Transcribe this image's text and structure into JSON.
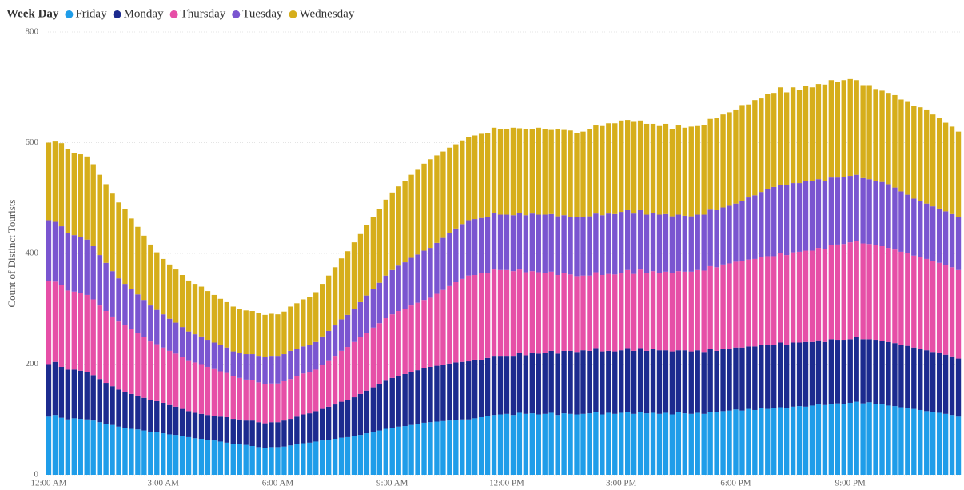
{
  "chart_data": {
    "type": "stacked_bar",
    "legend_title": "Week Day",
    "y_label": "Count of Distinct Tourists",
    "ylim": [
      0,
      800
    ],
    "yticks": [
      0,
      200,
      400,
      600,
      800
    ],
    "grid": true,
    "legend": "top-left",
    "categories": [
      "12:00 AM",
      null,
      null,
      null,
      null,
      null,
      null,
      null,
      null,
      null,
      null,
      null,
      null,
      null,
      null,
      null,
      null,
      null,
      "3:00 AM",
      null,
      null,
      null,
      null,
      null,
      null,
      null,
      null,
      null,
      null,
      null,
      null,
      null,
      null,
      null,
      null,
      null,
      "6:00 AM",
      null,
      null,
      null,
      null,
      null,
      null,
      null,
      null,
      null,
      null,
      null,
      null,
      null,
      null,
      null,
      null,
      null,
      "9:00 AM",
      null,
      null,
      null,
      null,
      null,
      null,
      null,
      null,
      null,
      null,
      null,
      null,
      null,
      null,
      null,
      null,
      null,
      "12:00 PM",
      null,
      null,
      null,
      null,
      null,
      null,
      null,
      null,
      null,
      null,
      null,
      null,
      null,
      null,
      null,
      null,
      null,
      "3:00 PM",
      null,
      null,
      null,
      null,
      null,
      null,
      null,
      null,
      null,
      null,
      null,
      null,
      null,
      null,
      null,
      null,
      null,
      "6:00 PM",
      null,
      null,
      null,
      null,
      null,
      null,
      null,
      null,
      null,
      null,
      null,
      null,
      null,
      null,
      null,
      null,
      null,
      "9:00 PM",
      null,
      null,
      null,
      null,
      null,
      null,
      null,
      null,
      null,
      null,
      null,
      null,
      null,
      null,
      null,
      null,
      null
    ],
    "series": [
      {
        "name": "Friday",
        "color": "#1f9de9",
        "values": [
          105,
          108,
          103,
          100,
          102,
          101,
          100,
          98,
          95,
          92,
          90,
          87,
          85,
          83,
          82,
          80,
          78,
          77,
          75,
          73,
          72,
          70,
          68,
          66,
          65,
          63,
          62,
          60,
          58,
          56,
          55,
          54,
          52,
          50,
          49,
          50,
          50,
          51,
          53,
          55,
          57,
          58,
          60,
          62,
          63,
          65,
          67,
          68,
          70,
          72,
          75,
          78,
          80,
          83,
          85,
          87,
          88,
          90,
          92,
          94,
          95,
          96,
          97,
          98,
          99,
          100,
          100,
          102,
          104,
          106,
          108,
          109,
          110,
          108,
          112,
          110,
          111,
          109,
          110,
          112,
          108,
          111,
          110,
          109,
          110,
          111,
          113,
          109,
          112,
          110,
          112,
          114,
          110,
          113,
          111,
          112,
          110,
          112,
          109,
          113,
          111,
          110,
          112,
          110,
          114,
          113,
          115,
          116,
          118,
          116,
          119,
          117,
          120,
          119,
          120,
          122,
          121,
          123,
          124,
          123,
          125,
          127,
          126,
          128,
          129,
          128,
          130,
          132,
          129,
          131,
          128,
          127,
          125,
          124,
          122,
          121,
          119,
          117,
          115,
          113,
          112,
          110,
          108,
          105
        ]
      },
      {
        "name": "Monday",
        "color": "#1c2b8f",
        "values": [
          95,
          96,
          92,
          90,
          88,
          87,
          85,
          82,
          78,
          74,
          70,
          67,
          65,
          63,
          61,
          59,
          57,
          56,
          55,
          53,
          51,
          49,
          47,
          46,
          45,
          45,
          44,
          45,
          46,
          45,
          45,
          44,
          46,
          45,
          44,
          45,
          45,
          47,
          48,
          50,
          52,
          53,
          55,
          57,
          60,
          62,
          65,
          67,
          70,
          74,
          77,
          80,
          84,
          87,
          90,
          92,
          94,
          96,
          97,
          99,
          100,
          101,
          102,
          103,
          104,
          104,
          105,
          106,
          104,
          105,
          107,
          106,
          105,
          107,
          108,
          106,
          109,
          110,
          110,
          112,
          111,
          113,
          114,
          113,
          115,
          113,
          116,
          114,
          112,
          113,
          113,
          115,
          114,
          116,
          113,
          115,
          115,
          113,
          114,
          112,
          114,
          113,
          113,
          112,
          114,
          111,
          113,
          112,
          112,
          114,
          113,
          115,
          114,
          116,
          115,
          117,
          114,
          116,
          115,
          117,
          115,
          116,
          114,
          117,
          115,
          116,
          115,
          117,
          116,
          114,
          116,
          115,
          115,
          114,
          113,
          112,
          111,
          110,
          110,
          109,
          108,
          107,
          106,
          105
        ]
      },
      {
        "name": "Thursday",
        "color": "#e64fa7",
        "values": [
          150,
          145,
          148,
          143,
          141,
          140,
          140,
          137,
          133,
          130,
          126,
          123,
          120,
          117,
          113,
          110,
          106,
          103,
          100,
          98,
          96,
          94,
          92,
          91,
          90,
          87,
          85,
          82,
          80,
          77,
          75,
          74,
          73,
          72,
          71,
          70,
          70,
          71,
          72,
          73,
          74,
          74,
          75,
          79,
          84,
          88,
          92,
          96,
          100,
          103,
          105,
          108,
          110,
          113,
          115,
          117,
          118,
          120,
          122,
          123,
          125,
          130,
          135,
          140,
          145,
          150,
          155,
          153,
          157,
          154,
          156,
          155,
          155,
          153,
          151,
          150,
          148,
          147,
          145,
          143,
          142,
          140,
          138,
          137,
          135,
          136,
          137,
          138,
          139,
          139,
          140,
          141,
          139,
          142,
          140,
          141,
          140,
          142,
          141,
          143,
          142,
          144,
          145,
          147,
          149,
          151,
          152,
          154,
          155,
          156,
          157,
          158,
          159,
          160,
          160,
          161,
          162,
          163,
          164,
          165,
          165,
          167,
          168,
          170,
          172,
          173,
          175,
          174,
          173,
          172,
          171,
          171,
          170,
          169,
          168,
          167,
          166,
          166,
          165,
          164,
          163,
          162,
          161,
          160
        ]
      },
      {
        "name": "Tuesday",
        "color": "#7a55d0",
        "values": [
          110,
          108,
          106,
          104,
          102,
          101,
          100,
          96,
          91,
          87,
          82,
          78,
          75,
          72,
          70,
          67,
          65,
          62,
          60,
          58,
          56,
          54,
          52,
          51,
          50,
          49,
          48,
          47,
          46,
          45,
          45,
          46,
          47,
          48,
          49,
          50,
          50,
          49,
          51,
          50,
          49,
          50,
          50,
          52,
          53,
          55,
          57,
          58,
          60,
          63,
          67,
          70,
          73,
          77,
          80,
          82,
          84,
          86,
          87,
          89,
          90,
          92,
          94,
          96,
          97,
          99,
          100,
          101,
          99,
          100,
          102,
          100,
          100,
          101,
          102,
          103,
          104,
          104,
          105,
          104,
          106,
          105,
          104,
          106,
          105,
          107,
          106,
          108,
          109,
          109,
          110,
          108,
          109,
          107,
          106,
          105,
          105,
          104,
          103,
          102,
          101,
          100,
          100,
          101,
          102,
          103,
          103,
          104,
          105,
          108,
          112,
          115,
          118,
          122,
          125,
          124,
          126,
          125,
          124,
          126,
          125,
          124,
          123,
          122,
          121,
          121,
          120,
          119,
          118,
          117,
          116,
          116,
          115,
          112,
          109,
          106,
          103,
          101,
          100,
          99,
          98,
          97,
          96,
          95
        ]
      },
      {
        "name": "Wednesday",
        "color": "#d6ae1b",
        "values": [
          140,
          145,
          150,
          152,
          148,
          150,
          150,
          148,
          145,
          142,
          140,
          137,
          135,
          128,
          122,
          116,
          110,
          104,
          100,
          98,
          96,
          94,
          92,
          91,
          90,
          88,
          86,
          84,
          82,
          81,
          80,
          79,
          78,
          77,
          76,
          76,
          75,
          77,
          80,
          82,
          85,
          87,
          90,
          95,
          100,
          105,
          110,
          115,
          120,
          123,
          127,
          130,
          133,
          137,
          140,
          143,
          147,
          150,
          153,
          157,
          160,
          158,
          156,
          154,
          152,
          151,
          150,
          151,
          152,
          153,
          154,
          154,
          155,
          158,
          153,
          156,
          152,
          157,
          155,
          152,
          158,
          154,
          156,
          153,
          155,
          157,
          159,
          161,
          163,
          164,
          165,
          163,
          167,
          162,
          164,
          161,
          160,
          163,
          158,
          161,
          159,
          162,
          160,
          162,
          164,
          166,
          168,
          169,
          170,
          174,
          168,
          172,
          169,
          171,
          170,
          176,
          168,
          173,
          169,
          172,
          170,
          172,
          174,
          176,
          173,
          175,
          175,
          171,
          168,
          170,
          166,
          165,
          165,
          167,
          166,
          169,
          168,
          170,
          170,
          166,
          163,
          160,
          158,
          155
        ]
      }
    ]
  }
}
